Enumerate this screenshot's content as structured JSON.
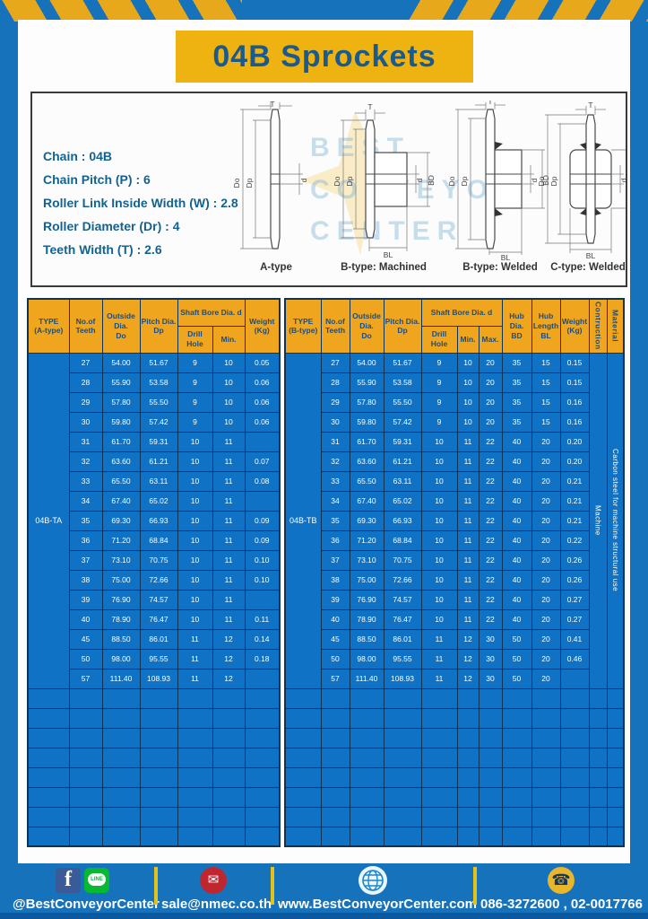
{
  "page": {
    "title": "04B Sprockets"
  },
  "colors": {
    "frame_blue": "#1673bb",
    "hazard_yellow": "#e8a81c",
    "banner_yellow": "#eeb211",
    "title_blue": "#1b5a8c",
    "header_yellow": "#efa51d",
    "cell_blue": "#0f72c4",
    "grid_navy": "#0e3358",
    "sep_yellow": "#e3c219"
  },
  "specs": {
    "lines": [
      "Chain : 04B",
      "Chain Pitch (P) : 6",
      "Roller Link Inside Width (W) : 2.8",
      "Roller Diameter (Dr) : 4",
      "Teeth Width (T) : 2.6"
    ]
  },
  "diagrams": {
    "captions": [
      "A-type",
      "B-type: Machined",
      "B-type: Welded",
      "C-type: Welded"
    ],
    "watermark": "BEST\nCONVEYOR\nCENTER"
  },
  "dims": {
    "t": "T",
    "do": "Do",
    "dp": "Dp",
    "d": "d",
    "bd": "BD",
    "bl": "BL"
  },
  "shared_header": {
    "teeth": "No.of\nTeeth",
    "outside": "Outside\nDia.\nDo",
    "pitch": "Pitch Dia.\nDp",
    "shaft_bore": "Shaft Bore Dia. d",
    "drill": "Drill Hole",
    "min": "Min.",
    "max": "Max.",
    "hub_dia": "Hub Dia.\nBD",
    "hub_len": "Hub\nLength\nBL",
    "weight": "Weight\n(Kg)",
    "construction": "Contruction",
    "material": "Material"
  },
  "tableA": {
    "type_header": "TYPE\n(A-type)",
    "type_value": "04B-TA",
    "empty_rows": 8,
    "rows": [
      [
        "27",
        "54.00",
        "51.67",
        "9",
        "10",
        "0.05"
      ],
      [
        "28",
        "55.90",
        "53.58",
        "9",
        "10",
        "0.06"
      ],
      [
        "29",
        "57.80",
        "55.50",
        "9",
        "10",
        "0.06"
      ],
      [
        "30",
        "59.80",
        "57.42",
        "9",
        "10",
        "0.06"
      ],
      [
        "31",
        "61.70",
        "59.31",
        "10",
        "11",
        ""
      ],
      [
        "32",
        "63.60",
        "61.21",
        "10",
        "11",
        "0.07"
      ],
      [
        "33",
        "65.50",
        "63.11",
        "10",
        "11",
        "0.08"
      ],
      [
        "34",
        "67.40",
        "65.02",
        "10",
        "11",
        ""
      ],
      [
        "35",
        "69.30",
        "66.93",
        "10",
        "11",
        "0.09"
      ],
      [
        "36",
        "71.20",
        "68.84",
        "10",
        "11",
        "0.09"
      ],
      [
        "37",
        "73.10",
        "70.75",
        "10",
        "11",
        "0.10"
      ],
      [
        "38",
        "75.00",
        "72.66",
        "10",
        "11",
        "0.10"
      ],
      [
        "39",
        "76.90",
        "74.57",
        "10",
        "11",
        ""
      ],
      [
        "40",
        "78.90",
        "76.47",
        "10",
        "11",
        "0.11"
      ],
      [
        "45",
        "88.50",
        "86.01",
        "11",
        "12",
        "0.14"
      ],
      [
        "50",
        "98.00",
        "95.55",
        "11",
        "12",
        "0.18"
      ],
      [
        "57",
        "111.40",
        "108.93",
        "11",
        "12",
        ""
      ]
    ]
  },
  "tableB": {
    "type_header": "TYPE\n(B-type)",
    "type_value": "04B-TB",
    "construction_value": "Machine",
    "material_value": "Carbon steel for machine structural use",
    "empty_rows": 8,
    "rows": [
      [
        "27",
        "54.00",
        "51.67",
        "9",
        "10",
        "20",
        "35",
        "15",
        "0.15"
      ],
      [
        "28",
        "55.90",
        "53.58",
        "9",
        "10",
        "20",
        "35",
        "15",
        "0.15"
      ],
      [
        "29",
        "57.80",
        "55.50",
        "9",
        "10",
        "20",
        "35",
        "15",
        "0.16"
      ],
      [
        "30",
        "59.80",
        "57.42",
        "9",
        "10",
        "20",
        "35",
        "15",
        "0.16"
      ],
      [
        "31",
        "61.70",
        "59.31",
        "10",
        "11",
        "22",
        "40",
        "20",
        "0.20"
      ],
      [
        "32",
        "63.60",
        "61.21",
        "10",
        "11",
        "22",
        "40",
        "20",
        "0.20"
      ],
      [
        "33",
        "65.50",
        "63.11",
        "10",
        "11",
        "22",
        "40",
        "20",
        "0.21"
      ],
      [
        "34",
        "67.40",
        "65.02",
        "10",
        "11",
        "22",
        "40",
        "20",
        "0.21"
      ],
      [
        "35",
        "69.30",
        "66.93",
        "10",
        "11",
        "22",
        "40",
        "20",
        "0.21"
      ],
      [
        "36",
        "71.20",
        "68.84",
        "10",
        "11",
        "22",
        "40",
        "20",
        "0.22"
      ],
      [
        "37",
        "73.10",
        "70.75",
        "10",
        "11",
        "22",
        "40",
        "20",
        "0.26"
      ],
      [
        "38",
        "75.00",
        "72.66",
        "10",
        "11",
        "22",
        "40",
        "20",
        "0.26"
      ],
      [
        "39",
        "76.90",
        "74.57",
        "10",
        "11",
        "22",
        "40",
        "20",
        "0.27"
      ],
      [
        "40",
        "78.90",
        "76.47",
        "10",
        "11",
        "22",
        "40",
        "20",
        "0.27"
      ],
      [
        "45",
        "88.50",
        "86.01",
        "11",
        "12",
        "30",
        "50",
        "20",
        "0.41"
      ],
      [
        "50",
        "98.00",
        "95.55",
        "11",
        "12",
        "30",
        "50",
        "20",
        "0.46"
      ],
      [
        "57",
        "111.40",
        "108.93",
        "11",
        "12",
        "30",
        "50",
        "20",
        ""
      ]
    ]
  },
  "footer": {
    "handle": "@BestConveyorCenter",
    "email": "sale@nmec.co.th",
    "website": "www.BestConveyorCenter.com",
    "phones": "086-3272600 , 02-0017766",
    "line_label": "LINE",
    "fb_label": "f",
    "mail_glyph": "✉",
    "phone_glyph": "☎"
  }
}
